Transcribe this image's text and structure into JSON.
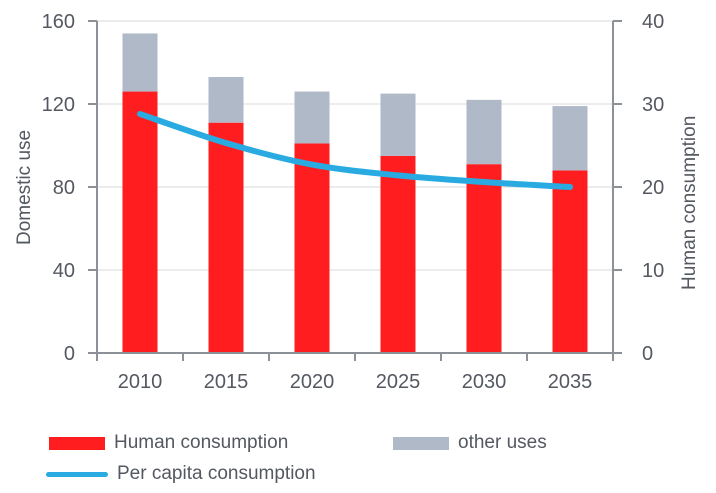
{
  "chart_data": {
    "type": "bar",
    "subtype": "stacked-bars-with-line",
    "title": "",
    "categories": [
      "2010",
      "2015",
      "2020",
      "2025",
      "2030",
      "2035"
    ],
    "series": [
      {
        "name": "Human consumption",
        "type": "bar",
        "axis": "left",
        "color": "#ff1d1f",
        "values": [
          126,
          111,
          101,
          95,
          91,
          88
        ]
      },
      {
        "name": "other uses",
        "type": "bar",
        "axis": "left",
        "color": "#afb9c8",
        "values": [
          28,
          22,
          25,
          30,
          31,
          31
        ]
      },
      {
        "name": "Per capita consumption",
        "type": "line",
        "axis": "right",
        "color": "#29abe2",
        "values": [
          28.8,
          25.3,
          22.7,
          21.4,
          20.6,
          20.0
        ]
      }
    ],
    "stacked_totals": [
      154,
      133,
      126,
      125,
      122,
      119
    ],
    "left_axis": {
      "title": "Domestic use",
      "min": 0,
      "max": 160,
      "ticks": [
        0,
        40,
        80,
        120,
        160
      ]
    },
    "right_axis": {
      "title": "Human consumption",
      "min": 0,
      "max": 40,
      "ticks": [
        0,
        10,
        20,
        30,
        40
      ]
    },
    "grid": true,
    "legend_position": "bottom",
    "colors": {
      "axis": "#8b9196",
      "grid": "#d9d9d9",
      "text": "#545860"
    }
  },
  "legend": {
    "items": [
      {
        "label": "Human consumption",
        "swatch": "bar"
      },
      {
        "label": "other uses",
        "swatch": "bar"
      },
      {
        "label": "Per capita consumption",
        "swatch": "line"
      }
    ]
  }
}
